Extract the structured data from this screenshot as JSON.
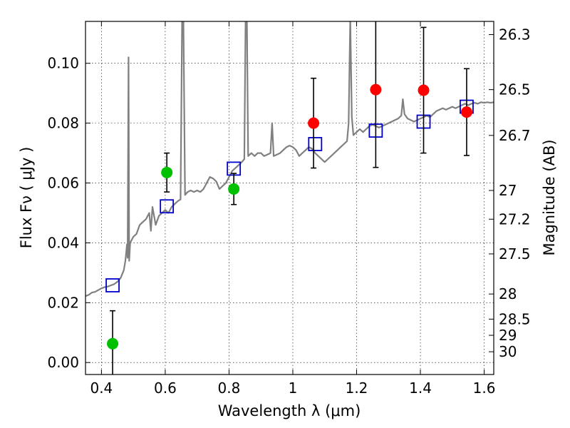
{
  "chart_data": {
    "type": "scatter",
    "xlabel": "Wavelength  λ (μm)",
    "ylabel": "Flux  Fν  ( μJy )",
    "ylabel_right": "Magnitude (AB)",
    "xlim": [
      0.35,
      1.63
    ],
    "ylim": [
      -0.004,
      0.114
    ],
    "xticks": [
      0.4,
      0.6,
      0.8,
      1.0,
      1.2,
      1.4,
      1.6
    ],
    "xtick_labels": [
      "0.4",
      "0.6",
      "0.8",
      "1",
      "1.2",
      "1.4",
      "1.6"
    ],
    "yticks": [
      0.0,
      0.02,
      0.04,
      0.06,
      0.08,
      0.1
    ],
    "ytick_labels": [
      "0.00",
      "0.02",
      "0.04",
      "0.06",
      "0.08",
      "0.10"
    ],
    "right_ticks": [
      {
        "label": "26.3",
        "flux": 0.1096
      },
      {
        "label": "26.5",
        "flux": 0.0912
      },
      {
        "label": "26.7",
        "flux": 0.0759
      },
      {
        "label": "27",
        "flux": 0.0575
      },
      {
        "label": "27.2",
        "flux": 0.0479
      },
      {
        "label": "27.5",
        "flux": 0.0363
      },
      {
        "label": "28",
        "flux": 0.0229
      },
      {
        "label": "28.5",
        "flux": 0.0145
      },
      {
        "label": "29",
        "flux": 0.0091
      },
      {
        "label": "30",
        "flux": 0.0036
      }
    ],
    "grid": true,
    "series": [
      {
        "kind": "model_spectrum",
        "color": "#808080",
        "points": [
          [
            0.35,
            0.0222
          ],
          [
            0.36,
            0.0226
          ],
          [
            0.37,
            0.0234
          ],
          [
            0.38,
            0.0236
          ],
          [
            0.39,
            0.0242
          ],
          [
            0.4,
            0.0248
          ],
          [
            0.41,
            0.0252
          ],
          [
            0.42,
            0.0254
          ],
          [
            0.43,
            0.0258
          ],
          [
            0.44,
            0.0262
          ],
          [
            0.45,
            0.027
          ],
          [
            0.46,
            0.0282
          ],
          [
            0.47,
            0.0308
          ],
          [
            0.475,
            0.034
          ],
          [
            0.48,
            0.0395
          ],
          [
            0.482,
            0.035
          ],
          [
            0.485,
            0.102
          ],
          [
            0.487,
            0.034
          ],
          [
            0.49,
            0.04
          ],
          [
            0.5,
            0.042
          ],
          [
            0.51,
            0.043
          ],
          [
            0.52,
            0.046
          ],
          [
            0.53,
            0.047
          ],
          [
            0.54,
            0.048
          ],
          [
            0.55,
            0.05
          ],
          [
            0.555,
            0.044
          ],
          [
            0.56,
            0.052
          ],
          [
            0.57,
            0.046
          ],
          [
            0.58,
            0.049
          ],
          [
            0.59,
            0.05
          ],
          [
            0.6,
            0.051
          ],
          [
            0.61,
            0.05
          ],
          [
            0.62,
            0.052
          ],
          [
            0.63,
            0.053
          ],
          [
            0.64,
            0.054
          ],
          [
            0.648,
            0.0545
          ],
          [
            0.653,
            0.115
          ],
          [
            0.657,
            0.115
          ],
          [
            0.662,
            0.056
          ],
          [
            0.67,
            0.057
          ],
          [
            0.68,
            0.0575
          ],
          [
            0.69,
            0.057
          ],
          [
            0.7,
            0.0575
          ],
          [
            0.71,
            0.057
          ],
          [
            0.72,
            0.058
          ],
          [
            0.73,
            0.06
          ],
          [
            0.74,
            0.062
          ],
          [
            0.75,
            0.0615
          ],
          [
            0.76,
            0.0605
          ],
          [
            0.77,
            0.058
          ],
          [
            0.78,
            0.059
          ],
          [
            0.79,
            0.06
          ],
          [
            0.8,
            0.062
          ],
          [
            0.81,
            0.064
          ],
          [
            0.82,
            0.065
          ],
          [
            0.83,
            0.066
          ],
          [
            0.84,
            0.067
          ],
          [
            0.848,
            0.068
          ],
          [
            0.852,
            0.115
          ],
          [
            0.856,
            0.115
          ],
          [
            0.86,
            0.069
          ],
          [
            0.87,
            0.07
          ],
          [
            0.88,
            0.069
          ],
          [
            0.89,
            0.07
          ],
          [
            0.9,
            0.07
          ],
          [
            0.91,
            0.069
          ],
          [
            0.92,
            0.0695
          ],
          [
            0.93,
            0.07
          ],
          [
            0.935,
            0.08
          ],
          [
            0.94,
            0.069
          ],
          [
            0.95,
            0.0695
          ],
          [
            0.96,
            0.07
          ],
          [
            0.97,
            0.071
          ],
          [
            0.98,
            0.072
          ],
          [
            0.99,
            0.0725
          ],
          [
            1.0,
            0.072
          ],
          [
            1.01,
            0.071
          ],
          [
            1.02,
            0.069
          ],
          [
            1.03,
            0.07
          ],
          [
            1.04,
            0.071
          ],
          [
            1.05,
            0.072
          ],
          [
            1.06,
            0.0715
          ],
          [
            1.07,
            0.07
          ],
          [
            1.08,
            0.069
          ],
          [
            1.09,
            0.068
          ],
          [
            1.1,
            0.067
          ],
          [
            1.11,
            0.068
          ],
          [
            1.12,
            0.069
          ],
          [
            1.13,
            0.07
          ],
          [
            1.14,
            0.071
          ],
          [
            1.15,
            0.072
          ],
          [
            1.16,
            0.073
          ],
          [
            1.17,
            0.074
          ],
          [
            1.175,
            0.08
          ],
          [
            1.18,
            0.115
          ],
          [
            1.185,
            0.082
          ],
          [
            1.19,
            0.076
          ],
          [
            1.2,
            0.077
          ],
          [
            1.21,
            0.078
          ],
          [
            1.22,
            0.077
          ],
          [
            1.23,
            0.078
          ],
          [
            1.24,
            0.079
          ],
          [
            1.25,
            0.0795
          ],
          [
            1.26,
            0.079
          ],
          [
            1.27,
            0.0785
          ],
          [
            1.28,
            0.079
          ],
          [
            1.29,
            0.0795
          ],
          [
            1.3,
            0.08
          ],
          [
            1.31,
            0.0805
          ],
          [
            1.32,
            0.081
          ],
          [
            1.33,
            0.0815
          ],
          [
            1.34,
            0.0825
          ],
          [
            1.345,
            0.088
          ],
          [
            1.35,
            0.083
          ],
          [
            1.36,
            0.0815
          ],
          [
            1.37,
            0.081
          ],
          [
            1.38,
            0.0805
          ],
          [
            1.39,
            0.081
          ],
          [
            1.4,
            0.0815
          ],
          [
            1.41,
            0.082
          ],
          [
            1.42,
            0.0825
          ],
          [
            1.43,
            0.082
          ],
          [
            1.44,
            0.083
          ],
          [
            1.45,
            0.084
          ],
          [
            1.46,
            0.0845
          ],
          [
            1.47,
            0.085
          ],
          [
            1.48,
            0.0845
          ],
          [
            1.49,
            0.085
          ],
          [
            1.5,
            0.0855
          ],
          [
            1.51,
            0.085
          ],
          [
            1.52,
            0.0855
          ],
          [
            1.53,
            0.086
          ],
          [
            1.54,
            0.0865
          ],
          [
            1.55,
            0.086
          ],
          [
            1.56,
            0.0865
          ],
          [
            1.57,
            0.0868
          ],
          [
            1.58,
            0.0865
          ],
          [
            1.59,
            0.087
          ],
          [
            1.6,
            0.0868
          ],
          [
            1.61,
            0.087
          ],
          [
            1.62,
            0.0868
          ],
          [
            1.63,
            0.087
          ]
        ]
      },
      {
        "kind": "model_photometry",
        "marker": "open-square",
        "color": "#0000cc",
        "points": [
          [
            0.435,
            0.0258
          ],
          [
            0.605,
            0.0522
          ],
          [
            0.815,
            0.0648
          ],
          [
            1.07,
            0.073
          ],
          [
            1.26,
            0.0775
          ],
          [
            1.41,
            0.0805
          ],
          [
            1.545,
            0.0855
          ]
        ]
      },
      {
        "kind": "observed",
        "marker": "filled-circle",
        "color": "#00c000",
        "points": [
          {
            "x": 0.435,
            "y": 0.0063,
            "err": 0.011
          },
          {
            "x": 0.605,
            "y": 0.0635,
            "err": 0.0065
          },
          {
            "x": 0.815,
            "y": 0.058,
            "err": 0.0052
          }
        ]
      },
      {
        "kind": "observed",
        "marker": "filled-circle",
        "color": "#ff0000",
        "points": [
          {
            "x": 1.065,
            "y": 0.08,
            "err": 0.015
          },
          {
            "x": 1.26,
            "y": 0.0912,
            "err": 0.026
          },
          {
            "x": 1.41,
            "y": 0.091,
            "err": 0.021
          },
          {
            "x": 1.545,
            "y": 0.0837,
            "err": 0.0145
          }
        ]
      }
    ]
  }
}
